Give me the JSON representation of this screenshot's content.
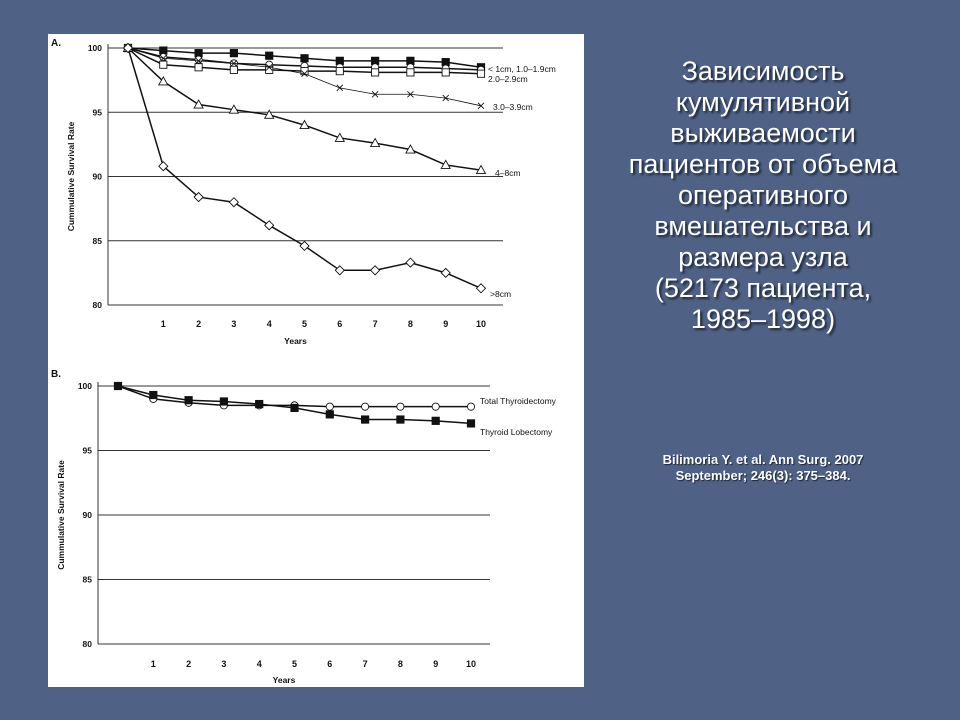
{
  "slide": {
    "title_lines": [
      "Зависимость",
      "кумулятивной",
      "выживаемости",
      "пациентов от объема",
      "оперативного",
      "вмешательства и",
      "размера узла",
      "(52173 пациента,",
      "1985–1998)"
    ],
    "citation_lines": [
      "Bilimoria Y. et al. Ann Surg. 2007",
      "September; 246(3): 375–384."
    ],
    "background_color": "#4f6286",
    "text_color": "#ffffff"
  },
  "chart_data": [
    {
      "panel_label": "A.",
      "type": "line",
      "xlabel": "Years",
      "ylabel": "Cummulative Survival Rate",
      "xlim": [
        0,
        10
      ],
      "ylim": [
        80,
        100
      ],
      "xticks": [
        1,
        2,
        3,
        4,
        5,
        6,
        7,
        8,
        9,
        10
      ],
      "yticks": [
        80,
        85,
        90,
        95,
        100
      ],
      "grid": "horizontal",
      "series": [
        {
          "name": "< 1cm, 1.0–1.9cm",
          "marker": "square-filled",
          "x": [
            0,
            1,
            2,
            3,
            4,
            5,
            6,
            7,
            8,
            9,
            10
          ],
          "values": [
            100,
            99.8,
            99.6,
            99.6,
            99.4,
            99.2,
            99.0,
            99.0,
            99.0,
            98.9,
            98.5
          ]
        },
        {
          "name": "< 1cm, 1.0–1.9cm",
          "marker": "circle-open",
          "x": [
            0,
            1,
            2,
            3,
            4,
            5,
            6,
            7,
            8,
            9,
            10
          ],
          "values": [
            100,
            99.3,
            99.1,
            98.8,
            98.7,
            98.6,
            98.5,
            98.5,
            98.5,
            98.4,
            98.3
          ]
        },
        {
          "name": "2.0–2.9cm",
          "marker": "square-open",
          "x": [
            0,
            1,
            2,
            3,
            4,
            5,
            6,
            7,
            8,
            9,
            10
          ],
          "values": [
            100,
            98.7,
            98.5,
            98.3,
            98.3,
            98.2,
            98.2,
            98.1,
            98.1,
            98.1,
            98.0
          ]
        },
        {
          "name": "3.0–3.9cm",
          "marker": "x",
          "x": [
            0,
            1,
            2,
            3,
            4,
            5,
            6,
            7,
            8,
            9,
            10
          ],
          "values": [
            100,
            99.2,
            99.0,
            98.8,
            98.5,
            98.0,
            96.9,
            96.4,
            96.4,
            96.1,
            95.5
          ]
        },
        {
          "name": "4–8cm",
          "marker": "triangle-open",
          "x": [
            0,
            1,
            2,
            3,
            4,
            5,
            6,
            7,
            8,
            9,
            10
          ],
          "values": [
            100,
            97.4,
            95.6,
            95.2,
            94.8,
            94.0,
            93.0,
            92.6,
            92.1,
            90.9,
            90.5
          ]
        },
        {
          "name": ">8cm",
          "marker": "diamond-open",
          "x": [
            0,
            1,
            2,
            3,
            4,
            5,
            6,
            7,
            8,
            9,
            10
          ],
          "values": [
            100,
            90.8,
            88.4,
            88.0,
            86.2,
            84.6,
            82.7,
            82.7,
            83.3,
            82.5,
            81.3
          ]
        }
      ]
    },
    {
      "panel_label": "B.",
      "type": "line",
      "xlabel": "Years",
      "ylabel": "Cummulative Survival Rate",
      "xlim": [
        0,
        10
      ],
      "ylim": [
        80,
        100
      ],
      "xticks": [
        1,
        2,
        3,
        4,
        5,
        6,
        7,
        8,
        9,
        10
      ],
      "yticks": [
        80,
        85,
        90,
        95,
        100
      ],
      "grid": "horizontal",
      "series": [
        {
          "name": "Total Thyroidectomy",
          "marker": "circle-open",
          "x": [
            0,
            1,
            2,
            3,
            4,
            5,
            6,
            7,
            8,
            9,
            10
          ],
          "values": [
            100,
            99.0,
            98.7,
            98.5,
            98.5,
            98.5,
            98.4,
            98.4,
            98.4,
            98.4,
            98.4
          ]
        },
        {
          "name": "Thyroid Lobectomy",
          "marker": "square-filled",
          "x": [
            0,
            1,
            2,
            3,
            4,
            5,
            6,
            7,
            8,
            9,
            10
          ],
          "values": [
            100,
            99.3,
            98.9,
            98.8,
            98.6,
            98.3,
            97.8,
            97.4,
            97.4,
            97.3,
            97.1
          ]
        }
      ]
    }
  ]
}
